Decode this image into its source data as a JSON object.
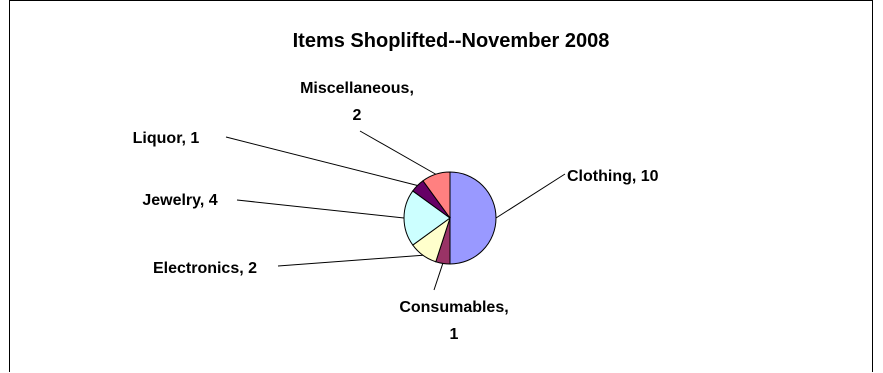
{
  "chart_data": {
    "type": "pie",
    "title": "Items Shoplifted--November 2008",
    "slices": [
      {
        "name": "Clothing",
        "value": 10,
        "color": "#9999ff",
        "label_lines": [
          "Clothing, 10"
        ]
      },
      {
        "name": "Consumables",
        "value": 1,
        "color": "#993366",
        "label_lines": [
          "Consumables,",
          "1"
        ]
      },
      {
        "name": "Electronics",
        "value": 2,
        "color": "#ffffcc",
        "label_lines": [
          "Electronics, 2"
        ]
      },
      {
        "name": "Jewelry",
        "value": 4,
        "color": "#ccffff",
        "label_lines": [
          "Jewelry, 4"
        ]
      },
      {
        "name": "Liquor",
        "value": 1,
        "color": "#660066",
        "label_lines": [
          "Liquor, 1"
        ]
      },
      {
        "name": "Miscellaneous",
        "value": 2,
        "color": "#ff8080",
        "label_lines": [
          "Miscellaneous,",
          "2"
        ]
      }
    ],
    "legend": "none",
    "data_labels": "outside with leader lines"
  }
}
